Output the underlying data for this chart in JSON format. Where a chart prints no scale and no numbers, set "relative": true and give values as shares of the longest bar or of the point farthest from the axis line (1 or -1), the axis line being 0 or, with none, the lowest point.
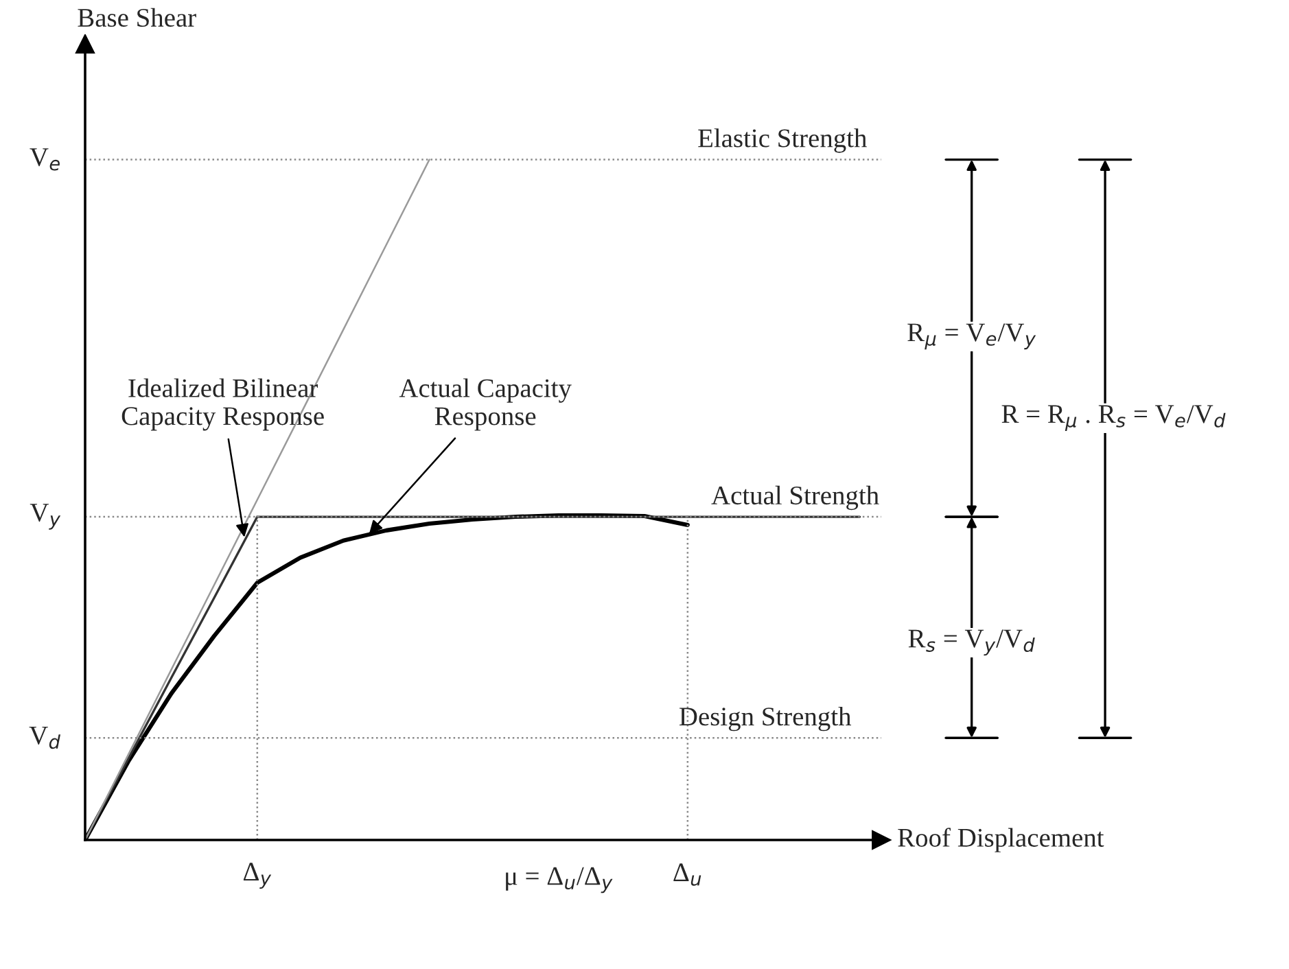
{
  "chart_data": {
    "type": "line",
    "relative": true,
    "xlabel": "Roof Displacement",
    "categories": [
      null,
      null,
      null,
      null,
      "Δ$_{y}$",
      null,
      null,
      null,
      null,
      null,
      null,
      null,
      null,
      null,
      "Δ$_{u}$",
      null,
      null,
      null,
      null
    ],
    "series": [
      {
        "color": "#000000",
        "values": [
          0,
          0.115,
          0.215,
          0.3,
          0.378,
          0.415,
          0.44,
          0.455,
          0.465,
          0.471,
          0.475,
          0.477,
          0.477,
          0.476,
          0.463,
          null,
          null,
          null,
          null
        ]
      },
      {
        "color": "#333333",
        "values": [
          0,
          0.119,
          0.238,
          0.356,
          0.475,
          0.475,
          0.475,
          0.475,
          0.475,
          0.475,
          0.475,
          0.475,
          0.475,
          0.475,
          0.475,
          0.475,
          0.475,
          0.475,
          0.475
        ]
      },
      {
        "color": "#9a9a9a",
        "values": [
          0,
          0.125,
          0.25,
          0.375,
          0.5,
          0.625,
          0.75,
          0.875,
          1.0,
          null,
          null,
          null,
          null,
          null,
          null,
          null,
          null,
          null,
          null
        ]
      }
    ],
    "ref_lines": [
      {
        "axis": "y",
        "value": 1.0,
        "label": "V$_{e}$",
        "color": "#888888",
        "line_style": "dotted"
      },
      {
        "axis": "y",
        "value": 0.475,
        "label": "V$_{y}$",
        "color": "#888888",
        "line_style": "dotted"
      },
      {
        "axis": "y",
        "value": 0.15,
        "label": "V$_{d}$",
        "color": "#888888",
        "line_style": "dotted"
      },
      {
        "axis": "x",
        "value": "Δ$_{y}$",
        "color": "#888888",
        "line_style": "dotted"
      },
      {
        "axis": "x",
        "value": "Δ$_{u}$",
        "color": "#888888",
        "line_style": "dotted"
      }
    ],
    "annotations": [
      "Elastic Strength",
      "Actual Strength",
      "Design Strength",
      "Idealized Bilinear\nCapacity Response",
      "Actual Capacity\nResponse",
      "μ = Δ$_{u}$/Δ$_{y}$",
      "R$_{μ}$ = V$_{e}$/V$_{y}$",
      "R = R$_{μ}$ . R$_{s}$ = V$_{e}$/V$_{d}$",
      "R$_{s}$ = V$_{y}$/V$_{d}$",
      "Base Shear"
    ],
    "grid": false,
    "legend": false
  }
}
